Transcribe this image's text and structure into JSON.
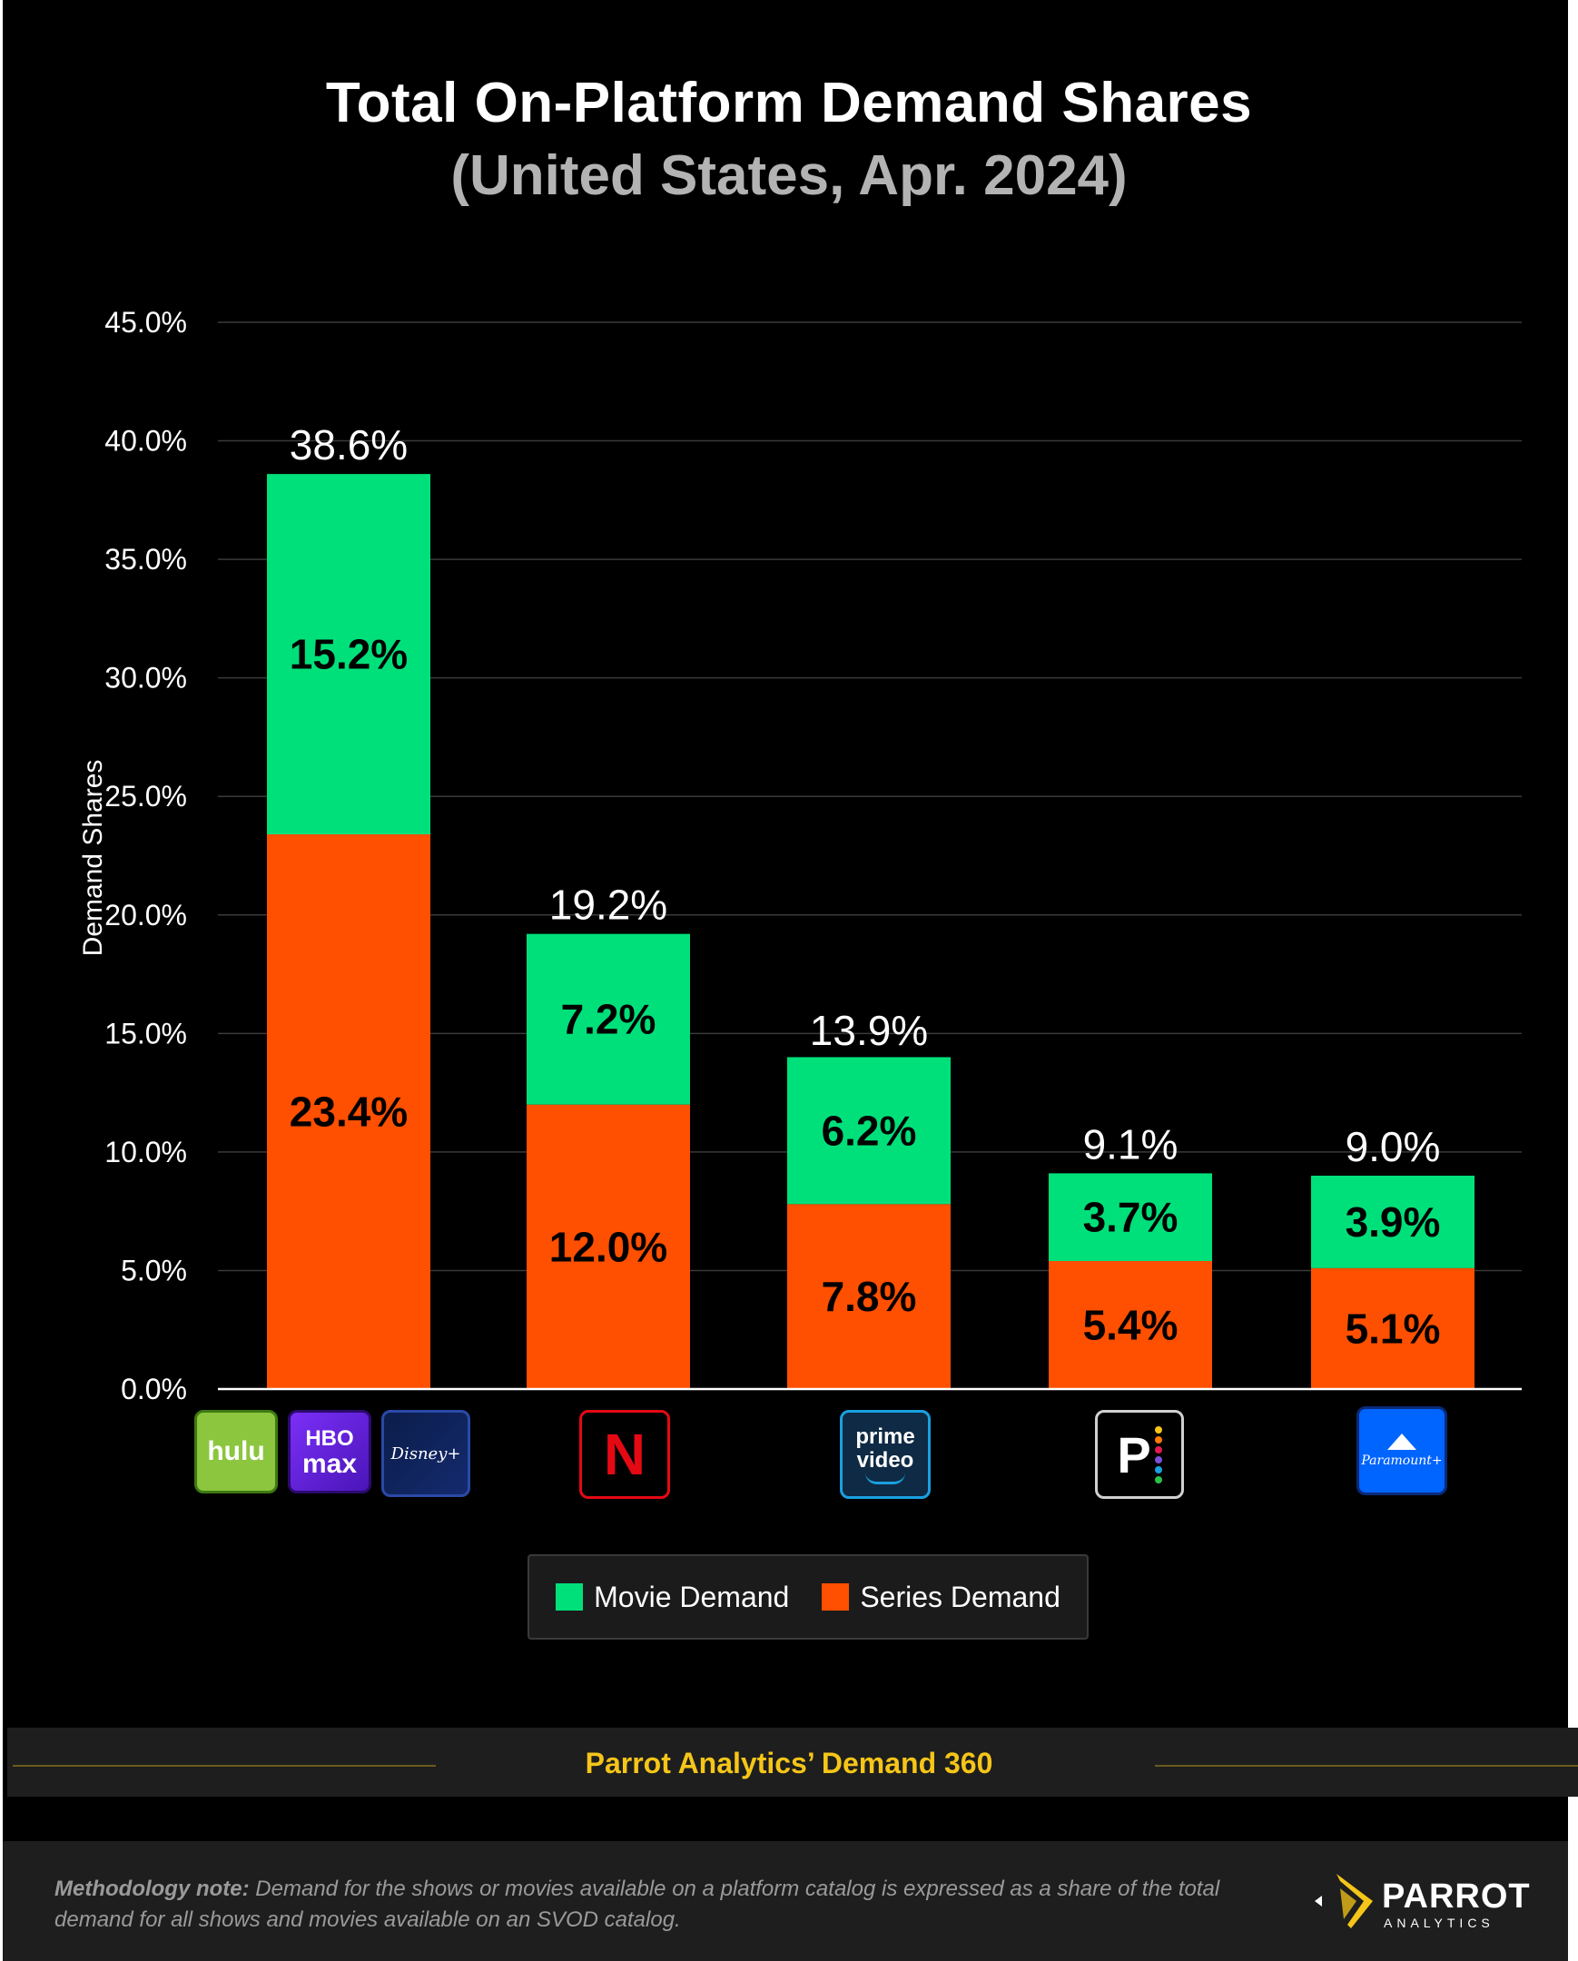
{
  "title": "Total On-Platform Demand Shares",
  "subtitle": "(United States, Apr. 2024)",
  "colors": {
    "movie": "#00e07a",
    "series": "#ff4f00",
    "background": "#000000",
    "accent": "#f5c518"
  },
  "chart_data": {
    "type": "bar",
    "stacked": true,
    "categories": [
      "Hulu / HBO Max / Disney+",
      "Netflix",
      "Prime Video",
      "Peacock",
      "Paramount+"
    ],
    "series": [
      {
        "name": "Series Demand",
        "values": [
          23.4,
          12.0,
          7.8,
          5.4,
          5.1
        ],
        "labels": [
          "23.4%",
          "12.0%",
          "7.8%",
          "5.4%",
          "5.1%"
        ]
      },
      {
        "name": "Movie Demand",
        "values": [
          15.2,
          7.2,
          6.2,
          3.7,
          3.9
        ],
        "labels": [
          "15.2%",
          "7.2%",
          "6.2%",
          "3.7%",
          "3.9%"
        ]
      }
    ],
    "totals": [
      38.6,
      19.2,
      13.9,
      9.1,
      9.0
    ],
    "total_labels": [
      "38.6%",
      "19.2%",
      "13.9%",
      "9.1%",
      "9.0%"
    ],
    "ylabel": "Demand Shares",
    "xlabel": "",
    "ylim": [
      0,
      45
    ],
    "yticks": [
      "0.0%",
      "5.0%",
      "10.0%",
      "15.0%",
      "20.0%",
      "25.0%",
      "30.0%",
      "35.0%",
      "40.0%",
      "45.0%"
    ],
    "grid": true
  },
  "logos": {
    "hulu": "hulu",
    "hbo_top": "HBO",
    "hbo_bottom": "max",
    "disney": "Disney+",
    "netflix": "N",
    "prime_top": "prime",
    "prime_bottom": "video",
    "peacock": "P",
    "paramount": "Paramount+"
  },
  "legend": {
    "movie_label": "Movie Demand",
    "series_label": "Series Demand"
  },
  "source": "Parrot Analytics’ Demand 360",
  "methodology": {
    "label": "Methodology note:",
    "text": " Demand for the shows or movies available on a platform catalog is expressed as a share of the total demand for all shows and movies available on an SVOD catalog."
  },
  "brand": {
    "name": "PARROT",
    "sub": "ANALYTICS"
  }
}
